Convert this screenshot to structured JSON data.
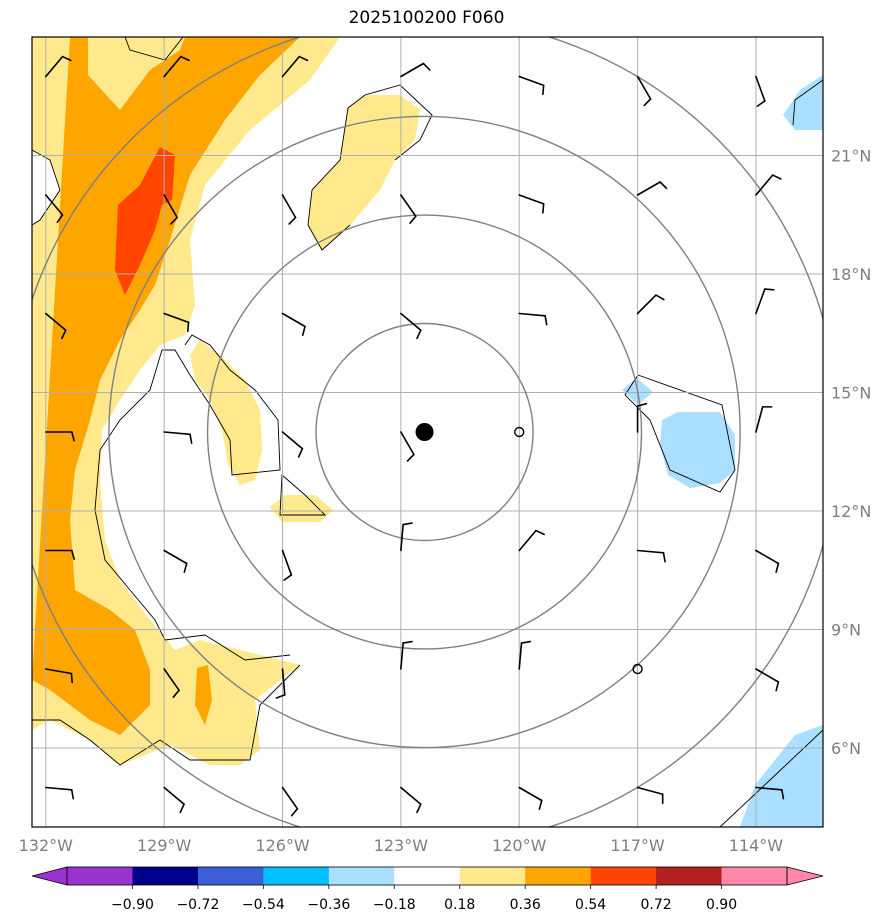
{
  "title": "2025100200 F060",
  "map": {
    "lon_ticks": [
      {
        "lon": -132,
        "label": "132°W"
      },
      {
        "lon": -129,
        "label": "129°W"
      },
      {
        "lon": -126,
        "label": "126°W"
      },
      {
        "lon": -123,
        "label": "123°W"
      },
      {
        "lon": -120,
        "label": "120°W"
      },
      {
        "lon": -117,
        "label": "117°W"
      },
      {
        "lon": -114,
        "label": "114°W"
      }
    ],
    "lat_ticks": [
      {
        "lat": 6,
        "label": "6°N"
      },
      {
        "lat": 9,
        "label": "9°N"
      },
      {
        "lat": 12,
        "label": "12°N"
      },
      {
        "lat": 15,
        "label": "15°N"
      },
      {
        "lat": 18,
        "label": "18°N"
      },
      {
        "lat": 21,
        "label": "21°N"
      }
    ],
    "lon_range": [
      -132.35,
      -112.3
    ],
    "lat_range": [
      4.0,
      24.0
    ],
    "center_marker": {
      "lon": -122.4,
      "lat": 14.0
    },
    "range_rings_deg": [
      2.75,
      5.5,
      8.0,
      10.5
    ],
    "open_circles": [
      {
        "lon": -120.0,
        "lat": 14.0
      },
      {
        "lon": -117.0,
        "lat": 8.0
      }
    ],
    "colors": {
      "c_pos1": "#ffe98c",
      "c_pos2": "#ffa500",
      "c_pos3": "#ff4500",
      "c_neg1": "#abdfff"
    }
  },
  "colorbar": {
    "labels": [
      "−0.90",
      "−0.72",
      "−0.54",
      "−0.36",
      "−0.18",
      "0.18",
      "0.36",
      "0.54",
      "0.72",
      "0.90"
    ],
    "colors": [
      "#9933cc",
      "#00008b",
      "#3b5fd6",
      "#00bfff",
      "#abdfff",
      "#ffffff",
      "#ffe98c",
      "#ffa500",
      "#ff4500",
      "#b22222",
      "#ff88aa"
    ],
    "under_color": "#9933cc",
    "over_color": "#ff88aa"
  }
}
